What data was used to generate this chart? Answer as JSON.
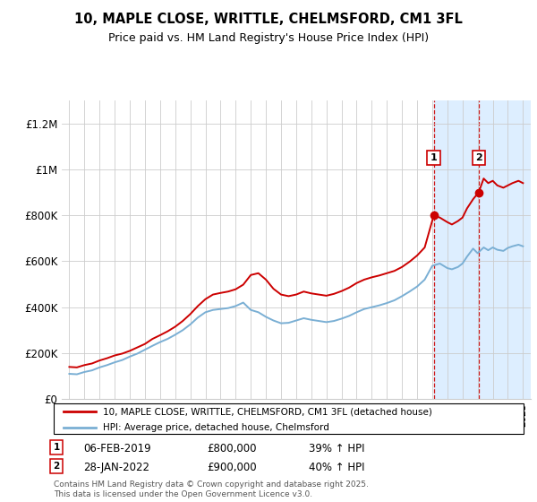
{
  "title": "10, MAPLE CLOSE, WRITTLE, CHELMSFORD, CM1 3FL",
  "subtitle": "Price paid vs. HM Land Registry's House Price Index (HPI)",
  "ylabel_ticks": [
    "£0",
    "£200K",
    "£400K",
    "£600K",
    "£800K",
    "£1M",
    "£1.2M"
  ],
  "ylim": [
    0,
    1300000
  ],
  "xlim_start": 1994.5,
  "xlim_end": 2025.5,
  "legend_line1": "10, MAPLE CLOSE, WRITTLE, CHELMSFORD, CM1 3FL (detached house)",
  "legend_line2": "HPI: Average price, detached house, Chelmsford",
  "annotation1": {
    "label": "1",
    "date_num": 2019.1,
    "price": 800000,
    "date_str": "06-FEB-2019",
    "hpi_str": "39% ↑ HPI"
  },
  "annotation2": {
    "label": "2",
    "date_num": 2022.07,
    "price": 900000,
    "date_str": "28-JAN-2022",
    "hpi_str": "40% ↑ HPI"
  },
  "footer": "Contains HM Land Registry data © Crown copyright and database right 2025.\nThis data is licensed under the Open Government Licence v3.0.",
  "red_color": "#cc0000",
  "blue_color": "#7aafd4",
  "bg_highlight": "#ddeeff",
  "grid_color": "#cccccc",
  "years_red": [
    1995,
    1995.5,
    1996,
    1996.5,
    1997,
    1997.5,
    1998,
    1998.5,
    1999,
    1999.5,
    2000,
    2000.5,
    2001,
    2001.5,
    2002,
    2002.5,
    2003,
    2003.5,
    2004,
    2004.5,
    2005,
    2005.5,
    2006,
    2006.5,
    2007,
    2007.5,
    2008,
    2008.5,
    2009,
    2009.5,
    2010,
    2010.5,
    2011,
    2011.5,
    2012,
    2012.5,
    2013,
    2013.5,
    2014,
    2014.5,
    2015,
    2015.5,
    2016,
    2016.5,
    2017,
    2017.5,
    2018,
    2018.5,
    2019.1,
    2019.5,
    2020,
    2020.3,
    2020.7,
    2021,
    2021.3,
    2021.7,
    2022.07,
    2022.4,
    2022.7,
    2023,
    2023.3,
    2023.7,
    2024,
    2024.3,
    2024.7,
    2025
  ],
  "vals_red": [
    140000,
    138000,
    148000,
    155000,
    168000,
    178000,
    190000,
    198000,
    210000,
    225000,
    240000,
    262000,
    278000,
    295000,
    315000,
    340000,
    370000,
    405000,
    435000,
    455000,
    462000,
    468000,
    478000,
    498000,
    540000,
    548000,
    520000,
    480000,
    455000,
    448000,
    455000,
    468000,
    460000,
    455000,
    450000,
    458000,
    470000,
    485000,
    505000,
    520000,
    530000,
    538000,
    548000,
    558000,
    575000,
    598000,
    625000,
    660000,
    800000,
    790000,
    770000,
    760000,
    775000,
    790000,
    830000,
    870000,
    900000,
    960000,
    940000,
    950000,
    930000,
    920000,
    930000,
    940000,
    950000,
    940000
  ],
  "years_blue": [
    1995,
    1995.5,
    1996,
    1996.5,
    1997,
    1997.5,
    1998,
    1998.5,
    1999,
    1999.5,
    2000,
    2000.5,
    2001,
    2001.5,
    2002,
    2002.5,
    2003,
    2003.5,
    2004,
    2004.5,
    2005,
    2005.5,
    2006,
    2006.5,
    2007,
    2007.5,
    2008,
    2008.5,
    2009,
    2009.5,
    2010,
    2010.5,
    2011,
    2011.5,
    2012,
    2012.5,
    2013,
    2013.5,
    2014,
    2014.5,
    2015,
    2015.5,
    2016,
    2016.5,
    2017,
    2017.5,
    2018,
    2018.5,
    2019,
    2019.5,
    2020,
    2020.3,
    2020.7,
    2021,
    2021.3,
    2021.7,
    2022,
    2022.4,
    2022.7,
    2023,
    2023.3,
    2023.7,
    2024,
    2024.3,
    2024.7,
    2025
  ],
  "vals_blue": [
    110000,
    108000,
    118000,
    125000,
    138000,
    148000,
    160000,
    170000,
    185000,
    198000,
    215000,
    232000,
    248000,
    262000,
    280000,
    300000,
    325000,
    355000,
    378000,
    388000,
    392000,
    396000,
    405000,
    420000,
    388000,
    378000,
    358000,
    342000,
    330000,
    332000,
    342000,
    352000,
    345000,
    340000,
    335000,
    340000,
    350000,
    362000,
    378000,
    392000,
    400000,
    408000,
    418000,
    430000,
    448000,
    468000,
    490000,
    520000,
    580000,
    590000,
    570000,
    565000,
    575000,
    590000,
    620000,
    655000,
    635000,
    660000,
    648000,
    660000,
    650000,
    645000,
    658000,
    665000,
    672000,
    665000
  ]
}
